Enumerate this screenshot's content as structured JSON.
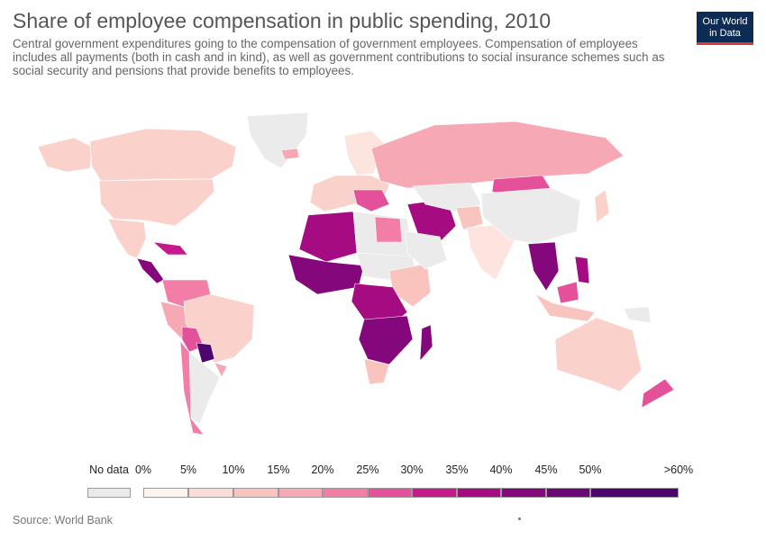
{
  "title": "Share of employee compensation in public spending, 2010",
  "subtitle": "Central government expenditures going to the compensation of government employees. Compensation of employees includes all payments (both in cash and in kind), as well as government contributions to social insurance schemes such as social security and pensions that provide benefits to employees.",
  "logo": {
    "line1": "Our World",
    "line2": "in Data"
  },
  "source": "Source: World Bank",
  "legend": {
    "no_data_label": "No data",
    "no_data_color": "#ebebeb",
    "ticks": [
      "0%",
      "5%",
      "10%",
      "15%",
      "20%",
      "25%",
      "30%",
      "35%",
      "40%",
      "45%",
      "50%",
      ">60%"
    ],
    "colors": [
      "#fdf3ef",
      "#fcdcd7",
      "#f9c4bd",
      "#f6a8b4",
      "#f27da6",
      "#e4519a",
      "#c6198b",
      "#a50c81",
      "#84077c",
      "#6a0676",
      "#4e066f"
    ]
  },
  "regions": [
    {
      "name": "greenland",
      "color": "#ebebeb"
    },
    {
      "name": "canada",
      "color": "#fbd2cb"
    },
    {
      "name": "usa",
      "color": "#fbd2cb"
    },
    {
      "name": "alaska",
      "color": "#fbd2cb"
    },
    {
      "name": "mexico",
      "color": "#fbd2cb"
    },
    {
      "name": "central-america",
      "color": "#84077c"
    },
    {
      "name": "caribbean",
      "color": "#c6198b"
    },
    {
      "name": "colombia-venezuela",
      "color": "#f27da6"
    },
    {
      "name": "peru-ecuador",
      "color": "#f6a8b4"
    },
    {
      "name": "brazil",
      "color": "#fbd2cb"
    },
    {
      "name": "bolivia",
      "color": "#e4519a"
    },
    {
      "name": "paraguay",
      "color": "#4e066f"
    },
    {
      "name": "argentina",
      "color": "#ebebeb"
    },
    {
      "name": "chile",
      "color": "#f27da6"
    },
    {
      "name": "uruguay",
      "color": "#f6a8b4"
    },
    {
      "name": "western-europe",
      "color": "#fbd2cb"
    },
    {
      "name": "scandinavia",
      "color": "#fde4de"
    },
    {
      "name": "iceland",
      "color": "#f6a8b4"
    },
    {
      "name": "balkans",
      "color": "#e4519a"
    },
    {
      "name": "russia",
      "color": "#f6a8b4"
    },
    {
      "name": "north-africa",
      "color": "#a50c81"
    },
    {
      "name": "libya-egypt",
      "color": "#ebebeb"
    },
    {
      "name": "egypt",
      "color": "#f27da6"
    },
    {
      "name": "west-africa",
      "color": "#84077c"
    },
    {
      "name": "sahel",
      "color": "#ebebeb"
    },
    {
      "name": "central-africa",
      "color": "#a50c81"
    },
    {
      "name": "east-africa",
      "color": "#f9c4bd"
    },
    {
      "name": "southern-africa",
      "color": "#84077c"
    },
    {
      "name": "south-africa",
      "color": "#f9c4bd"
    },
    {
      "name": "madagascar",
      "color": "#84077c"
    },
    {
      "name": "middle-east",
      "color": "#a50c81"
    },
    {
      "name": "arabia",
      "color": "#ebebeb"
    },
    {
      "name": "central-asia",
      "color": "#ebebeb"
    },
    {
      "name": "afghanistan",
      "color": "#f9c4bd"
    },
    {
      "name": "india",
      "color": "#fde4de"
    },
    {
      "name": "mongolia",
      "color": "#e4519a"
    },
    {
      "name": "china",
      "color": "#ebebeb"
    },
    {
      "name": "southeast-asia",
      "color": "#84077c"
    },
    {
      "name": "philippines",
      "color": "#a50c81"
    },
    {
      "name": "indonesia",
      "color": "#f9c4bd"
    },
    {
      "name": "borneo",
      "color": "#e4519a"
    },
    {
      "name": "japan",
      "color": "#fbd2cb"
    },
    {
      "name": "australia",
      "color": "#fbd2cb"
    },
    {
      "name": "new-zealand",
      "color": "#e4519a"
    },
    {
      "name": "png",
      "color": "#ebebeb"
    }
  ]
}
